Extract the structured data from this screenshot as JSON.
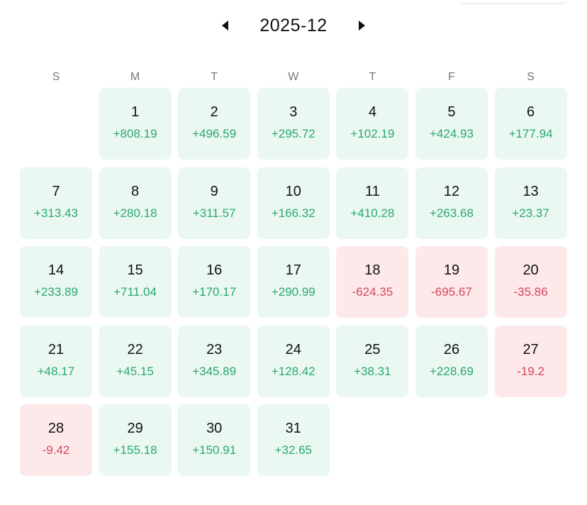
{
  "header": {
    "month": "2025-12",
    "prev_icon": "triangle-left-icon",
    "next_icon": "triangle-right-icon"
  },
  "weekdays": [
    "S",
    "M",
    "T",
    "W",
    "T",
    "F",
    "S"
  ],
  "first_weekday_index": 1,
  "days": [
    {
      "day": "1",
      "value": "+808.19",
      "trend": "pos"
    },
    {
      "day": "2",
      "value": "+496.59",
      "trend": "pos"
    },
    {
      "day": "3",
      "value": "+295.72",
      "trend": "pos"
    },
    {
      "day": "4",
      "value": "+102.19",
      "trend": "pos"
    },
    {
      "day": "5",
      "value": "+424.93",
      "trend": "pos"
    },
    {
      "day": "6",
      "value": "+177.94",
      "trend": "pos"
    },
    {
      "day": "7",
      "value": "+313.43",
      "trend": "pos"
    },
    {
      "day": "8",
      "value": "+280.18",
      "trend": "pos"
    },
    {
      "day": "9",
      "value": "+311.57",
      "trend": "pos"
    },
    {
      "day": "10",
      "value": "+166.32",
      "trend": "pos"
    },
    {
      "day": "11",
      "value": "+410.28",
      "trend": "pos"
    },
    {
      "day": "12",
      "value": "+263.68",
      "trend": "pos"
    },
    {
      "day": "13",
      "value": "+23.37",
      "trend": "pos"
    },
    {
      "day": "14",
      "value": "+233.89",
      "trend": "pos"
    },
    {
      "day": "15",
      "value": "+711.04",
      "trend": "pos"
    },
    {
      "day": "16",
      "value": "+170.17",
      "trend": "pos"
    },
    {
      "day": "17",
      "value": "+290.99",
      "trend": "pos"
    },
    {
      "day": "18",
      "value": "-624.35",
      "trend": "neg"
    },
    {
      "day": "19",
      "value": "-695.67",
      "trend": "neg"
    },
    {
      "day": "20",
      "value": "-35.86",
      "trend": "neg"
    },
    {
      "day": "21",
      "value": "+48.17",
      "trend": "pos"
    },
    {
      "day": "22",
      "value": "+45.15",
      "trend": "pos"
    },
    {
      "day": "23",
      "value": "+345.89",
      "trend": "pos"
    },
    {
      "day": "24",
      "value": "+128.42",
      "trend": "pos"
    },
    {
      "day": "25",
      "value": "+38.31",
      "trend": "pos"
    },
    {
      "day": "26",
      "value": "+228.69",
      "trend": "pos"
    },
    {
      "day": "27",
      "value": "-19.2",
      "trend": "neg"
    },
    {
      "day": "28",
      "value": "-9.42",
      "trend": "neg"
    },
    {
      "day": "29",
      "value": "+155.18",
      "trend": "pos"
    },
    {
      "day": "30",
      "value": "+150.91",
      "trend": "pos"
    },
    {
      "day": "31",
      "value": "+32.65",
      "trend": "pos"
    }
  ],
  "colors": {
    "positive_bg": "#eaf8f1",
    "positive_text": "#2aa772",
    "negative_bg": "#fde9ea",
    "negative_text": "#d4465c"
  }
}
